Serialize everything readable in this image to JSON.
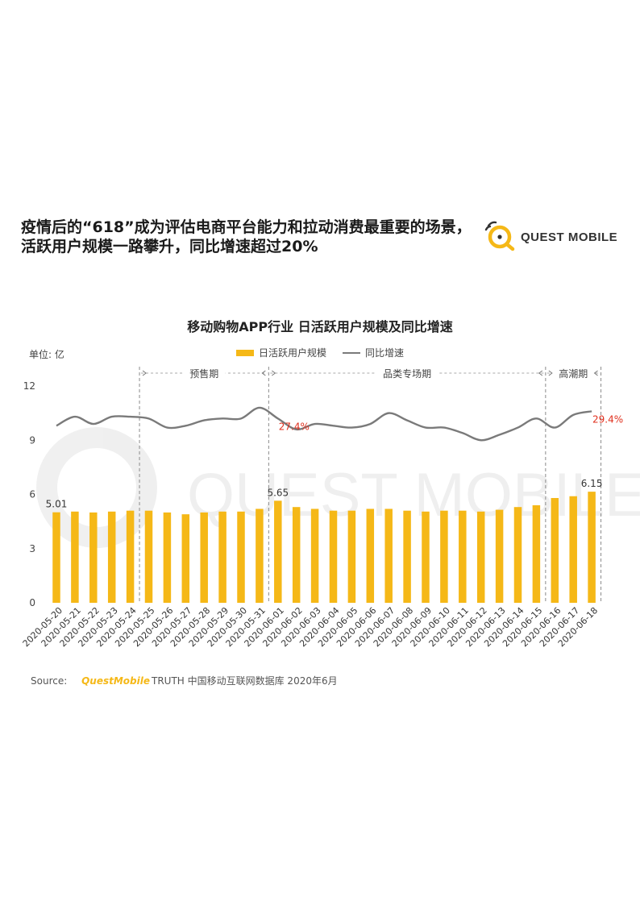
{
  "headline": {
    "line1": "疫情后的“618”成为评估电商平台能力和拉动消费最重要的场景，",
    "line2": "活跃用户规模一路攀升，同比增速超过20%"
  },
  "brand": {
    "name": "QUEST MOBILE",
    "color": "#F5B817"
  },
  "chart_data": {
    "type": "bar+line",
    "title": "移动购物APP行业 日活跃用户规模及同比增速",
    "unit_label": "单位: 亿",
    "categories": [
      "2020-05-20",
      "2020-05-21",
      "2020-05-22",
      "2020-05-23",
      "2020-05-24",
      "2020-05-25",
      "2020-05-26",
      "2020-05-27",
      "2020-05-28",
      "2020-05-29",
      "2020-05-30",
      "2020-05-31",
      "2020-06-01",
      "2020-06-02",
      "2020-06-03",
      "2020-06-04",
      "2020-06-05",
      "2020-06-06",
      "2020-06-07",
      "2020-06-08",
      "2020-06-09",
      "2020-06-10",
      "2020-06-11",
      "2020-06-12",
      "2020-06-13",
      "2020-06-14",
      "2020-06-15",
      "2020-06-16",
      "2020-06-17",
      "2020-06-18"
    ],
    "series": [
      {
        "name": "日活跃用户规模",
        "kind": "bar",
        "color": "#F5B817",
        "values": [
          5.01,
          5.05,
          5.0,
          5.05,
          5.1,
          5.1,
          5.0,
          4.9,
          5.0,
          5.05,
          5.05,
          5.2,
          5.65,
          5.3,
          5.2,
          5.1,
          5.1,
          5.2,
          5.2,
          5.1,
          5.05,
          5.1,
          5.1,
          5.05,
          5.15,
          5.3,
          5.4,
          5.8,
          5.9,
          6.15
        ]
      },
      {
        "name": "同比增速",
        "kind": "line",
        "color": "#7a7a7a",
        "values_scaled": [
          9.8,
          10.3,
          9.9,
          10.3,
          10.3,
          10.2,
          9.7,
          9.8,
          10.1,
          10.2,
          10.2,
          10.8,
          10.2,
          9.6,
          9.9,
          9.8,
          9.7,
          9.9,
          10.5,
          10.1,
          9.7,
          9.7,
          9.4,
          9.0,
          9.3,
          9.7,
          10.2,
          9.7,
          10.4,
          10.6
        ]
      }
    ],
    "ylim": [
      0,
      12
    ],
    "yticks": [
      "0",
      "3",
      "6",
      "9",
      "12"
    ],
    "labels": [
      {
        "text": "5.01",
        "index": 0,
        "kind": "bar"
      },
      {
        "text": "5.65",
        "index": 12,
        "kind": "bar"
      },
      {
        "text": "6.15",
        "index": 29,
        "kind": "bar"
      },
      {
        "text": "27.4%",
        "index": 12,
        "kind": "line",
        "color": "#e0301e"
      },
      {
        "text": "29.4%",
        "index": 29,
        "kind": "line",
        "color": "#e0301e"
      }
    ],
    "periods": [
      {
        "label": "预售期",
        "from": 4.5,
        "to": 11.5
      },
      {
        "label": "品类专场期",
        "from": 11.5,
        "to": 26.5
      },
      {
        "label": "高潮期",
        "from": 26.5,
        "to": 29.5
      }
    ],
    "grid": false,
    "legend": "top-center"
  },
  "source": {
    "prefix": "Source:",
    "brand": "QuestMobile",
    "text": "TRUTH 中国移动互联网数据库 2020年6月"
  }
}
